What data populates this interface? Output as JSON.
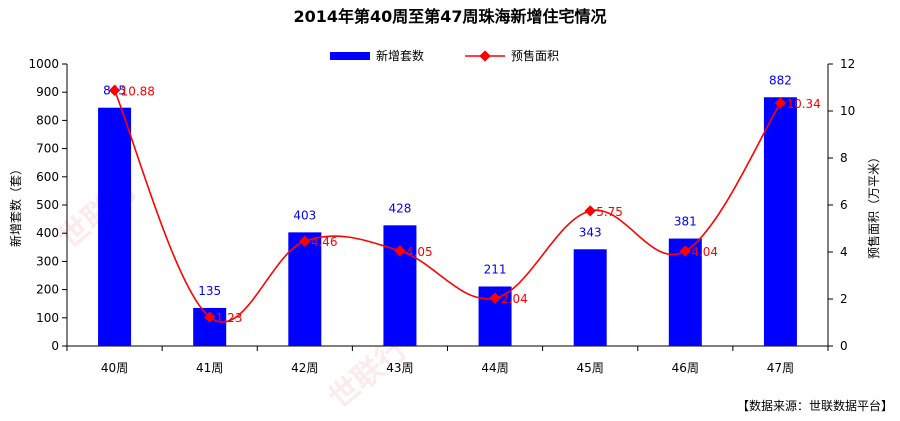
{
  "chart_data": {
    "type": "bar",
    "title": "2014年第40周至第47周珠海新增住宅情况",
    "categories": [
      "40周",
      "41周",
      "42周",
      "43周",
      "44周",
      "45周",
      "46周",
      "47周"
    ],
    "series": [
      {
        "name": "新增套数",
        "type": "bar",
        "axis": "left",
        "values": [
          845,
          135,
          403,
          428,
          211,
          343,
          381,
          882
        ],
        "color": "#0000ff"
      },
      {
        "name": "预售面积",
        "type": "line",
        "axis": "right",
        "values": [
          10.88,
          1.23,
          4.46,
          4.05,
          2.04,
          5.75,
          4.04,
          10.34
        ],
        "color": "#ff0000"
      }
    ],
    "ylabel": "新增套数（套）",
    "y2label": "预售面积（万平米）",
    "ylim": [
      0,
      1000
    ],
    "y2lim": [
      0,
      12
    ],
    "yticks": [
      0,
      100,
      200,
      300,
      400,
      500,
      600,
      700,
      800,
      900,
      1000
    ],
    "y2ticks": [
      0,
      2,
      4,
      6,
      8,
      10,
      12
    ],
    "grid": false,
    "legend": "top-center"
  },
  "source_note": "【数据来源：世联数据平台】",
  "watermark": "世联行"
}
